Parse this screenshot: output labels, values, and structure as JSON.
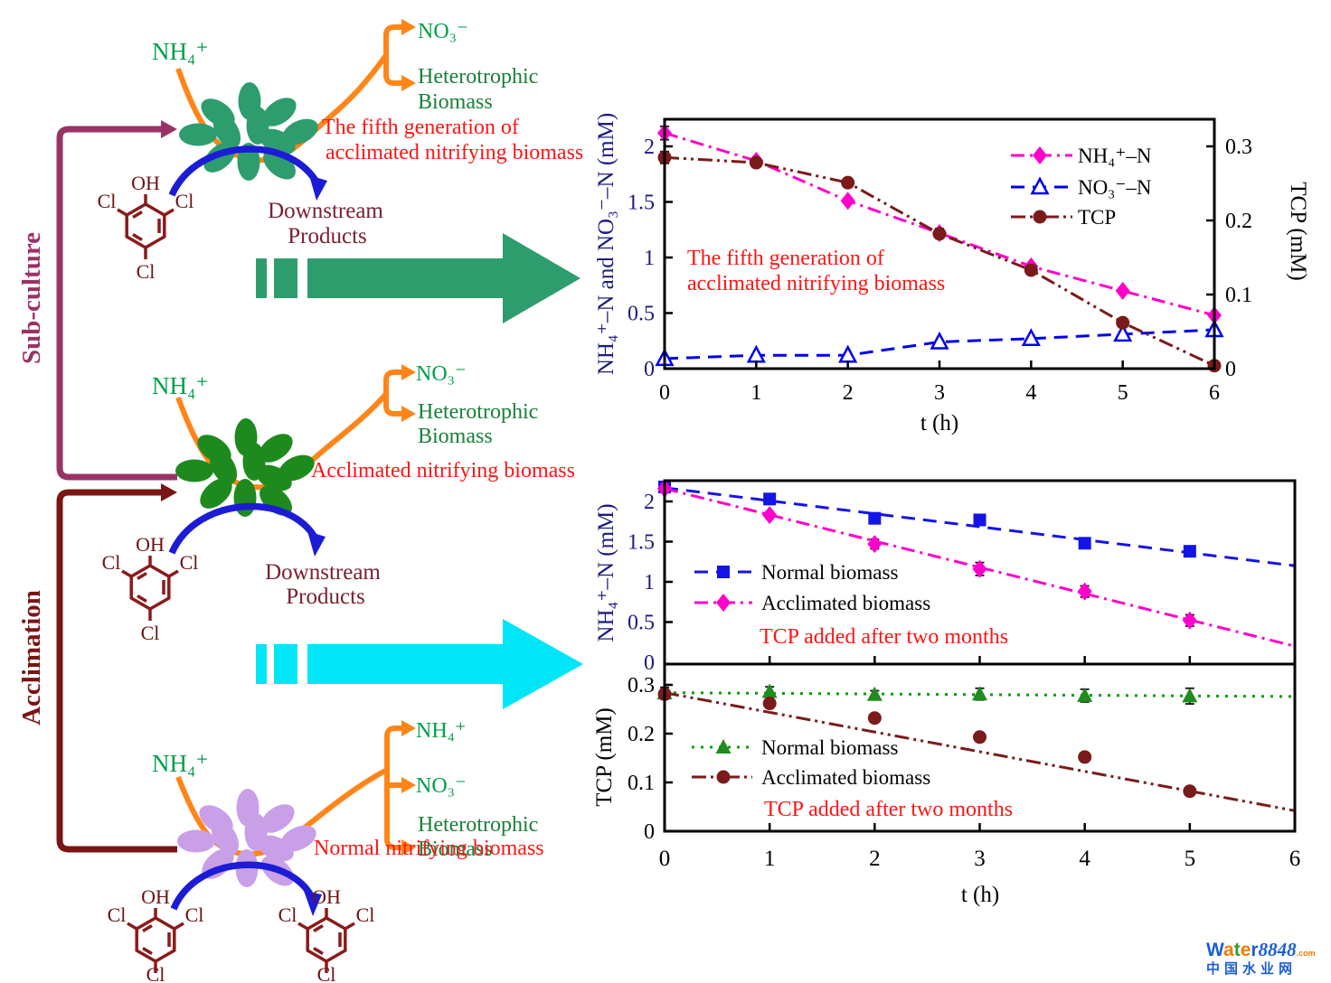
{
  "diagram": {
    "side_labels": {
      "subculture": "Sub-culture",
      "acclimation": "Acclimation"
    },
    "molecule": {
      "hydroxyl": "OH",
      "chloro": "Cl"
    },
    "sections": {
      "top": {
        "substrate": "NH₄⁺",
        "product1": "NO₃⁻",
        "product2_line1": "Heterotrophic",
        "product2_line2": "Biomass",
        "label_line1": "The fifth generation of",
        "label_line2": "acclimated nitrifying biomass",
        "downstream_line1": "Downstream",
        "downstream_line2": "Products"
      },
      "middle": {
        "substrate": "NH₄⁺",
        "product1": "NO₃⁻",
        "product2_line1": "Heterotrophic",
        "product2_line2": "Biomass",
        "label": "Acclimated nitrifying biomass",
        "downstream_line1": "Downstream",
        "downstream_line2": "Products"
      },
      "bottom": {
        "substrate": "NH₄⁺",
        "product1": "NH₄⁺",
        "product2": "NO₃⁻",
        "product3_line1": "Heterotrophic",
        "product3_line2": "Biomass",
        "label": "Normal nitrifying biomass"
      }
    },
    "colors": {
      "substrate_green": "#00A04A",
      "hetero_green": "#1A8038",
      "orange": "#FF8519",
      "blue_arc": "#1C1CD6",
      "subculture_purple": "#993366",
      "acclimation_darkred": "#7B1414",
      "annotation_red": "#FF1414",
      "downstream_maroon": "#7B2030",
      "molecule_darkred": "#8B1A1A",
      "cluster_top": "#2E9D6E",
      "cluster_middle": "#1E8A1E",
      "cluster_bottom": "#C9A0E8",
      "big_arrow_green": "#2E9D6E",
      "big_arrow_cyan": "#00E6F6"
    }
  },
  "chart_data": [
    {
      "type": "line",
      "name": "fifth-generation-kinetics",
      "x": [
        0,
        1,
        2,
        3,
        4,
        5,
        6
      ],
      "xlabel": "t (h)",
      "xtick_labels": [
        "0",
        "1",
        "2",
        "3",
        "4",
        "5",
        "6"
      ],
      "ylabel_left": "NH₄⁺–N and NO₃⁻–N (mM)",
      "ylabel_right": "TCP (mM)",
      "ylim_left": [
        0,
        2.25
      ],
      "ylim_right": [
        0,
        0.3375
      ],
      "yticks_left": [
        "0",
        "0.5",
        "1",
        "1.5",
        "2"
      ],
      "ytick_left_values": [
        0,
        0.5,
        1,
        1.5,
        2
      ],
      "yticks_right": [
        "0",
        "0.1",
        "0.2",
        "0.3"
      ],
      "ytick_right_values": [
        0,
        0.1,
        0.2,
        0.3
      ],
      "legend_position": "upper-right",
      "annotation": [
        "The fifth generation of",
        "acclimated nitrifying biomass"
      ],
      "annotation_color": "#FF1414",
      "series": [
        {
          "name": "NH₄⁺–N",
          "axis": "left",
          "marker": "diamond",
          "color": "#FF00CC",
          "dash": "dashdot",
          "values": [
            2.12,
            1.87,
            1.51,
            1.22,
            0.92,
            0.7,
            0.48
          ],
          "errors": [
            0.06,
            0,
            0,
            0.04,
            0,
            0,
            0
          ]
        },
        {
          "name": "NO₃⁻–N",
          "axis": "left",
          "marker": "triangle-open",
          "color": "#0000EE",
          "dash": "dashed",
          "values": [
            0.09,
            0.12,
            0.12,
            0.24,
            0.27,
            0.31,
            0.35
          ],
          "errors": [
            0,
            0,
            0,
            0,
            0,
            0,
            0
          ]
        },
        {
          "name": "TCP",
          "axis": "right",
          "marker": "circle",
          "color": "#7B1A1A",
          "dash": "dashdotdot",
          "values": [
            0.285,
            0.278,
            0.251,
            0.182,
            0.133,
            0.062,
            0.004
          ],
          "errors": [
            0.008,
            0.004,
            0.005,
            0.006,
            0.004,
            0.003,
            0
          ]
        }
      ]
    },
    {
      "type": "line",
      "name": "ammonium-comparison",
      "x": [
        0,
        1,
        2,
        3,
        4,
        5
      ],
      "xlim": [
        0,
        6
      ],
      "ylabel": "NH₄⁺–N (mM)",
      "ylim": [
        0,
        2.26
      ],
      "yticks": [
        "0",
        "0.5",
        "1",
        "1.5",
        "2"
      ],
      "ytick_values": [
        0,
        0.5,
        1,
        1.5,
        2
      ],
      "annotation": [
        "TCP added after two months"
      ],
      "annotation_color": "#FF1414",
      "series": [
        {
          "name": "Normal biomass",
          "marker": "square",
          "color": "#1414E6",
          "dash": "dashed",
          "values": [
            2.18,
            2.03,
            1.79,
            1.77,
            1.48,
            1.38
          ],
          "errors": [
            0.03,
            0.03,
            0.03,
            0.03,
            0.04,
            0.03
          ],
          "trend": [
            2.17,
            1.2
          ]
        },
        {
          "name": "Acclimated biomass",
          "marker": "diamond",
          "color": "#FF00CC",
          "dash": "dashdot",
          "values": [
            2.16,
            1.83,
            1.47,
            1.16,
            0.88,
            0.52
          ],
          "errors": [
            0.03,
            0.04,
            0.06,
            0.08,
            0.07,
            0.07
          ],
          "trend": [
            2.16,
            0.2
          ]
        }
      ]
    },
    {
      "type": "line",
      "name": "tcp-comparison",
      "x": [
        0,
        1,
        2,
        3,
        4,
        5
      ],
      "xlim": [
        0,
        6
      ],
      "xlabel": "t (h)",
      "xtick_labels": [
        "0",
        "1",
        "2",
        "3",
        "4",
        "5",
        "6"
      ],
      "ylabel": "TCP (mM)",
      "ylim": [
        0,
        0.343
      ],
      "yticks": [
        "0",
        "0.1",
        "0.2",
        "0.3"
      ],
      "ytick_values": [
        0,
        0.1,
        0.2,
        0.3
      ],
      "annotation": [
        "TCP added after two months"
      ],
      "annotation_color": "#FF1414",
      "series": [
        {
          "name": "Normal biomass",
          "marker": "triangle",
          "color": "#1E8C1E",
          "line_color": "#00A000",
          "dash": "dotted",
          "values": [
            0.283,
            0.286,
            0.28,
            0.281,
            0.278,
            0.277
          ],
          "errors": [
            0.012,
            0.01,
            0.008,
            0.012,
            0.013,
            0.016
          ],
          "trend": [
            0.284,
            0.276
          ]
        },
        {
          "name": "Acclimated biomass",
          "marker": "circle",
          "color": "#7B1A1A",
          "dash": "dashdotdot",
          "values": [
            0.281,
            0.262,
            0.232,
            0.193,
            0.152,
            0.082
          ],
          "errors": [
            0.01,
            0.008,
            0.006,
            0.006,
            0.008,
            0.005
          ],
          "trend": [
            0.284,
            0.042
          ]
        }
      ]
    }
  ],
  "logo": {
    "letters": [
      [
        "W",
        "#1A5FD0"
      ],
      [
        "a",
        "#F07C00"
      ],
      [
        "t",
        "#2F9E30"
      ],
      [
        "e",
        "#F07C00"
      ],
      [
        "r",
        "#1A5FD0"
      ]
    ],
    "number": "8848",
    "number_color": "#1A5FD0",
    "domain_suffix": ".com",
    "domain_suffix_color": "#F07C00",
    "tagline": "中国水业网",
    "tagline_color": "#1A5FD0"
  }
}
